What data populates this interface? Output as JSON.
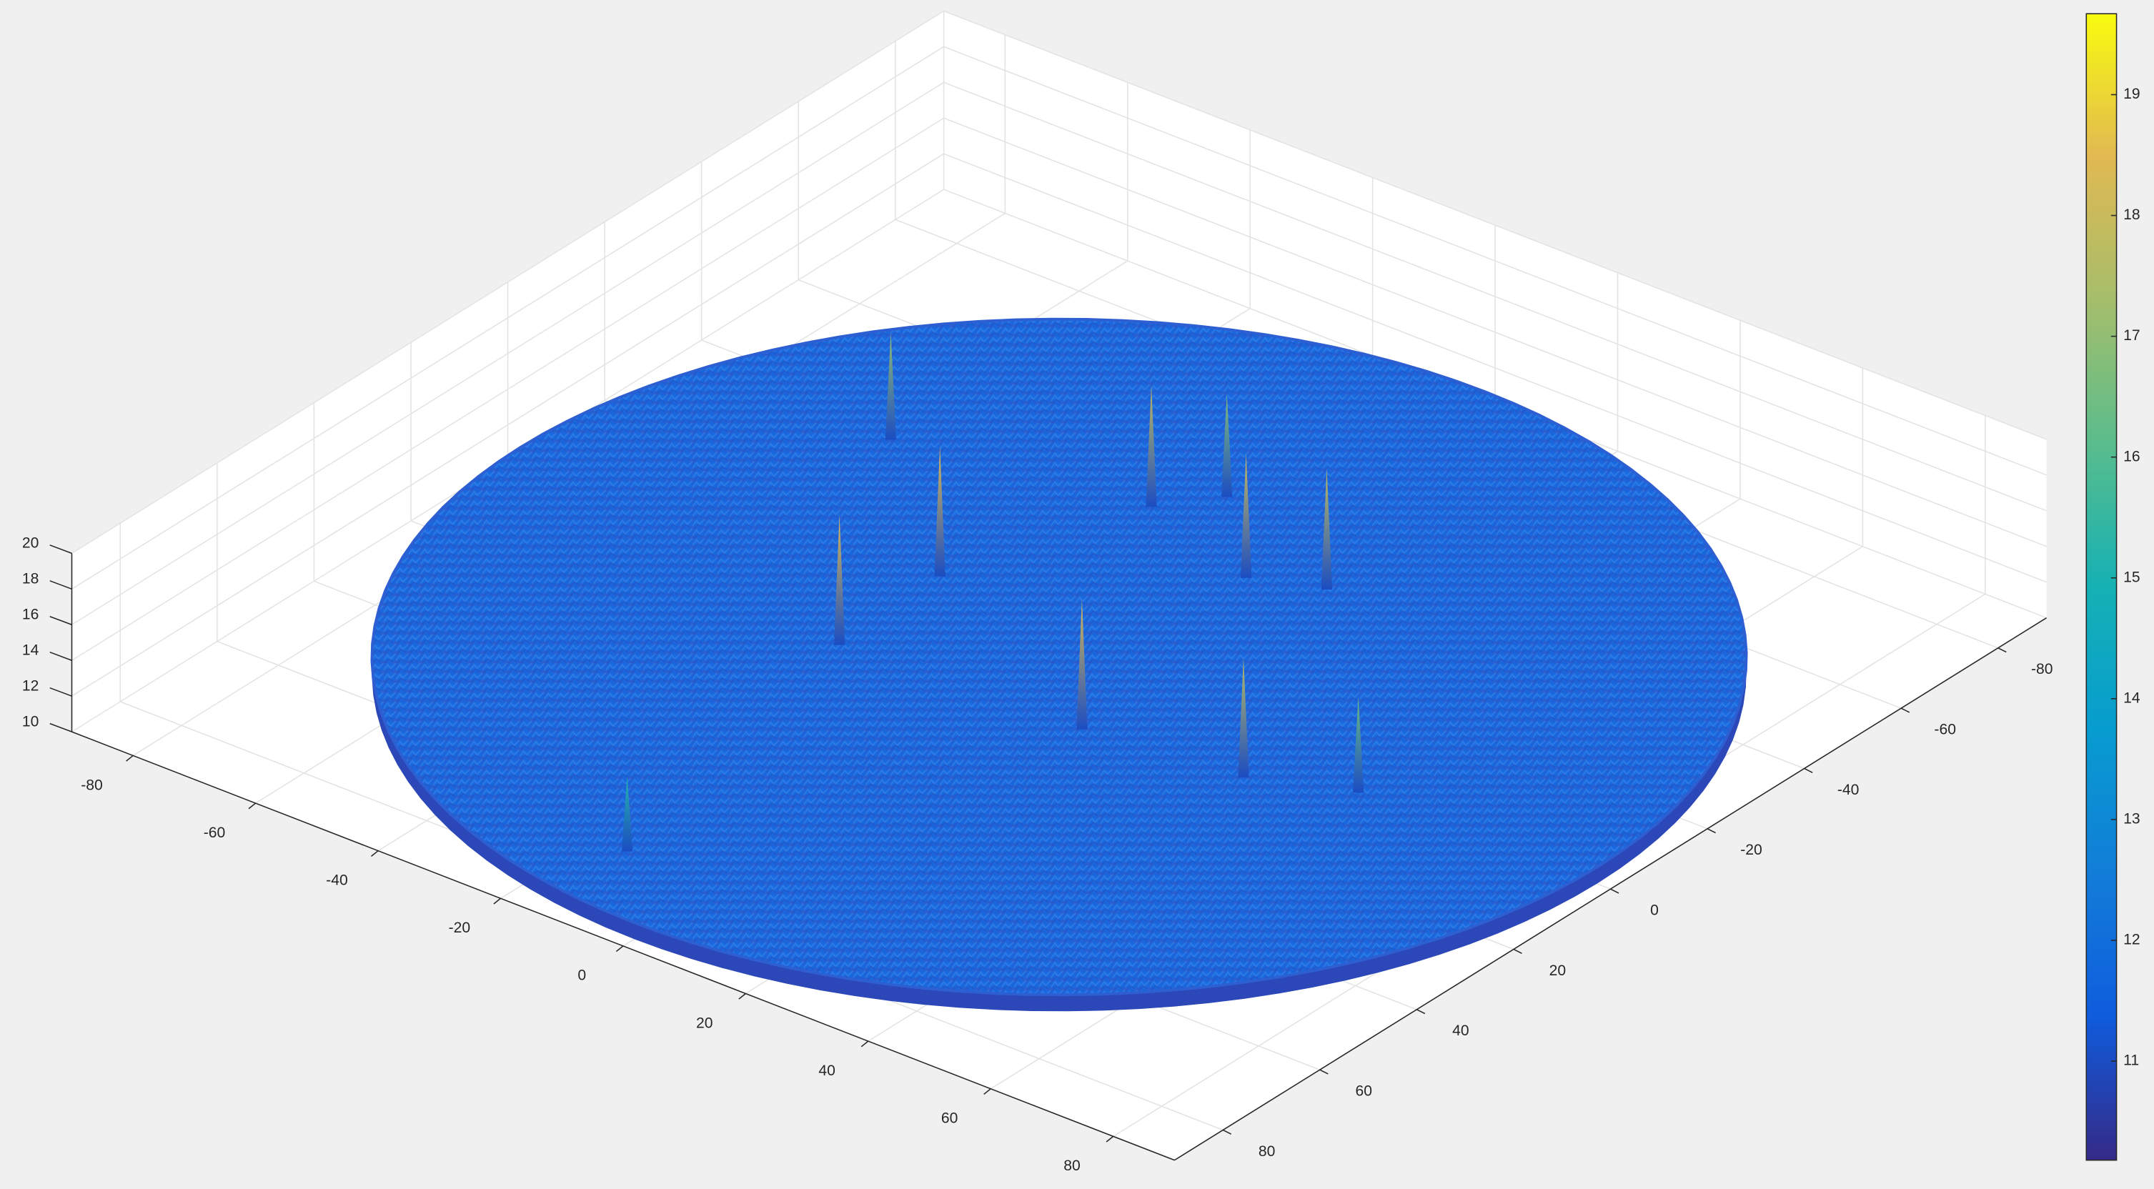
{
  "chart_data": {
    "type": "surface",
    "xlim": [
      -90,
      90
    ],
    "ylim": [
      -90,
      90
    ],
    "zlim": [
      10,
      20
    ],
    "xticks": [
      -80,
      -60,
      -40,
      -20,
      0,
      20,
      40,
      60,
      80
    ],
    "yticks": [
      -80,
      -60,
      -40,
      -20,
      0,
      20,
      40,
      60,
      80
    ],
    "zticks": [
      10,
      12,
      14,
      16,
      18,
      20
    ],
    "clim": [
      10.18,
      19.67
    ],
    "cticks": [
      11,
      12,
      13,
      14,
      15,
      16,
      17,
      18,
      19
    ],
    "colormap": "parula",
    "grid": true,
    "surface": {
      "radius": 88,
      "base": 11
    },
    "peaks": [
      {
        "x": -52,
        "y": -31,
        "z": 17
      },
      {
        "x": -25,
        "y": -7,
        "z": 18.3
      },
      {
        "x": -24,
        "y": 15,
        "z": 18.3
      },
      {
        "x": -15,
        "y": -38,
        "z": 17.8
      },
      {
        "x": -9,
        "y": -46,
        "z": 16.8
      },
      {
        "x": 6,
        "y": -31,
        "z": 18
      },
      {
        "x": 16,
        "y": -35,
        "z": 17.8
      },
      {
        "x": 14,
        "y": 13,
        "z": 18.3
      },
      {
        "x": 38,
        "y": 10,
        "z": 17.7
      },
      {
        "x": 52,
        "y": 4,
        "z": 16.4
      },
      {
        "x": -12,
        "y": 74,
        "z": 15.2
      }
    ]
  }
}
